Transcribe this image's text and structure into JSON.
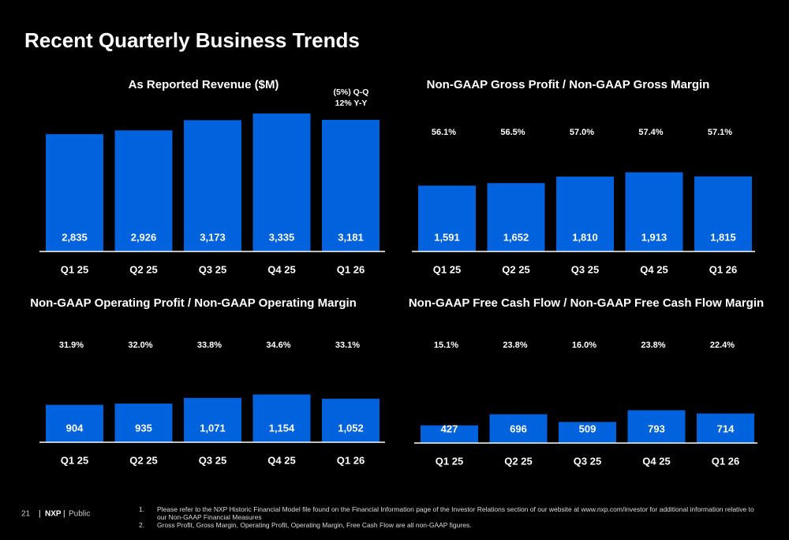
{
  "title": "Recent Quarterly Business Trends",
  "chart_data": [
    {
      "type": "bar",
      "title": "As Reported Revenue ($M)",
      "categories": [
        "Q1 25",
        "Q2 25",
        "Q3 25",
        "Q4 25",
        "Q1 26"
      ],
      "values": [
        2835,
        2926,
        3173,
        3335,
        3181
      ],
      "value_labels": [
        "2,835",
        "2,926",
        "3,173",
        "3,335",
        "3,181"
      ],
      "annotations": [
        "(5%) Q-Q",
        "12% Y-Y"
      ],
      "color": "#0062dc",
      "ylim": [
        0,
        4000
      ]
    },
    {
      "type": "bar",
      "title": "Non-GAAP Gross Profit / Non-GAAP Gross Margin",
      "categories": [
        "Q1 25",
        "Q2 25",
        "Q3 25",
        "Q4 25",
        "Q1 26"
      ],
      "values": [
        1591,
        1652,
        1810,
        1913,
        1815
      ],
      "value_labels": [
        "1,591",
        "1,652",
        "1,810",
        "1,913",
        "1,815"
      ],
      "margin_values": [
        56.1,
        56.5,
        57.0,
        57.4,
        57.1
      ],
      "margin_labels": [
        "56.1%",
        "56.5%",
        "57.0%",
        "57.4%",
        "57.1%"
      ],
      "color": "#0062dc",
      "ylim": [
        0,
        4000
      ]
    },
    {
      "type": "bar",
      "title": "Non-GAAP Operating Profit / Non-GAAP Operating Margin",
      "categories": [
        "Q1 25",
        "Q2 25",
        "Q3 25",
        "Q4 25",
        "Q1 26"
      ],
      "values": [
        904,
        935,
        1071,
        1154,
        1052
      ],
      "value_labels": [
        "904",
        "935",
        "1,071",
        "1,154",
        "1,052"
      ],
      "margin_values": [
        31.9,
        32.0,
        33.8,
        34.6,
        33.1
      ],
      "margin_labels": [
        "31.9%",
        "32.0%",
        "33.8%",
        "34.6%",
        "33.1%"
      ],
      "color": "#0062dc",
      "ylim": [
        0,
        4000
      ]
    },
    {
      "type": "bar",
      "title": "Non-GAAP Free Cash Flow / Non-GAAP Free Cash Flow Margin",
      "categories": [
        "Q1 25",
        "Q2 25",
        "Q3 25",
        "Q4 25",
        "Q1 26"
      ],
      "values": [
        427,
        696,
        509,
        793,
        714
      ],
      "value_labels": [
        "427",
        "696",
        "509",
        "793",
        "714"
      ],
      "margin_values": [
        15.1,
        23.8,
        16.0,
        23.8,
        22.4
      ],
      "margin_labels": [
        "15.1%",
        "23.8%",
        "16.0%",
        "23.8%",
        "22.4%"
      ],
      "color": "#0062dc",
      "ylim": [
        0,
        4000
      ]
    }
  ],
  "footer": {
    "page": "21",
    "brand": "NXP",
    "classification": "Public"
  },
  "footnotes": [
    {
      "number": "1.",
      "text": "Please refer to the NXP Historic Financial Model file found on the Financial Information page of the Investor Relations section of our website at www.nxp.com/investor for additional information relative to our Non-GAAP Financial Measures"
    },
    {
      "number": "2.",
      "text": "Gross Profit, Gross Margin, Operating Profit, Operating Margin, Free Cash Flow are all non-GAAP figures."
    }
  ]
}
